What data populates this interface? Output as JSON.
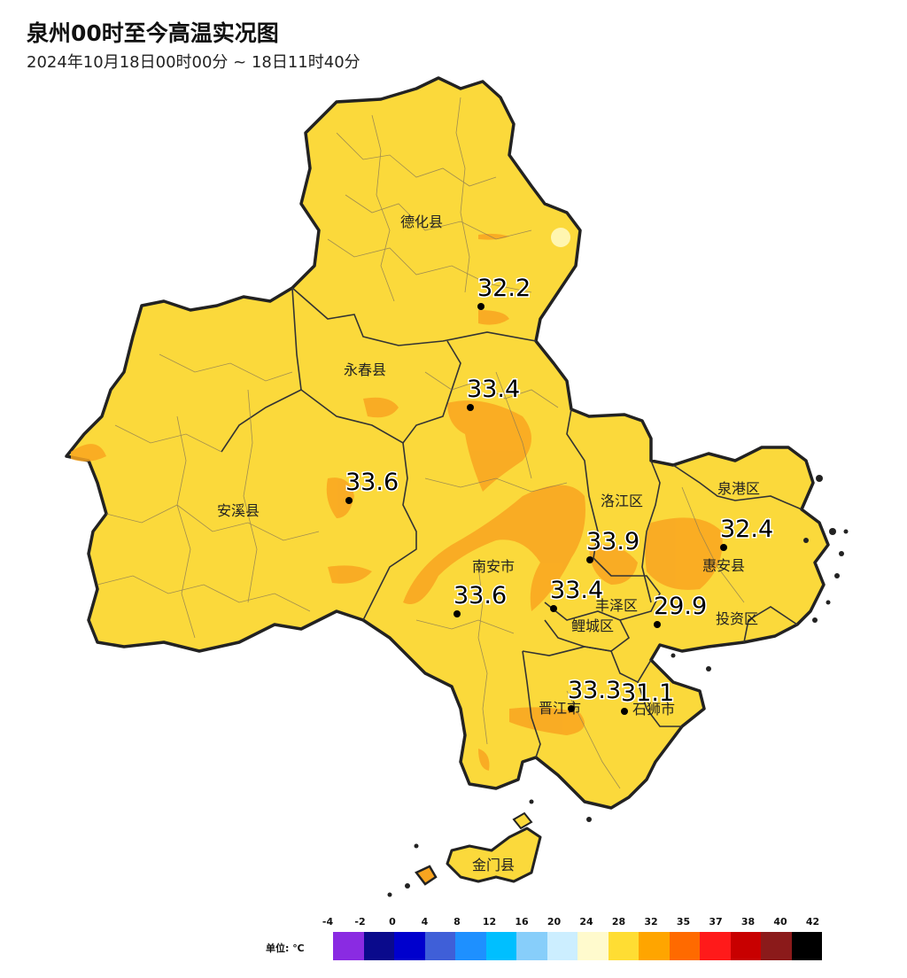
{
  "title": "泉州00时至今高温实况图",
  "subtitle": "2024年10月18日00时00分 ~ 18日11时40分",
  "map_labels": {
    "dehua": "德化县",
    "yongchun": "永春县",
    "anxi": "安溪县",
    "nanan": "南安市",
    "luojiang": "洛江区",
    "quangang": "泉港区",
    "huian": "惠安县",
    "fengze": "丰泽区",
    "licheng": "鲤城区",
    "touziqu": "投资区",
    "jinjiang": "晋江市",
    "shishi": "石狮市",
    "jinmen": "金门县"
  },
  "stations": [
    {
      "id": "dehua",
      "value": "32.2"
    },
    {
      "id": "yongchun",
      "value": "33.4"
    },
    {
      "id": "anxi",
      "value": "33.6"
    },
    {
      "id": "nanan",
      "value": "33.6"
    },
    {
      "id": "luojiang",
      "value": "33.9"
    },
    {
      "id": "licheng",
      "value": "33.4"
    },
    {
      "id": "huian",
      "value": "32.4"
    },
    {
      "id": "touziqu",
      "value": "29.9"
    },
    {
      "id": "jinjiang",
      "value": "33.3"
    },
    {
      "id": "shishi",
      "value": "31.1"
    }
  ],
  "legend": {
    "unit_label": "单位: ℃",
    "ticks": [
      "-4",
      "-2",
      "0",
      "4",
      "8",
      "12",
      "16",
      "20",
      "24",
      "28",
      "32",
      "35",
      "37",
      "38",
      "40",
      "42"
    ],
    "colors": [
      "#8a2be2",
      "#0a0a8c",
      "#0000cd",
      "#3f5fd8",
      "#1e90ff",
      "#00bfff",
      "#87cefa",
      "#cceeff",
      "#fffacd",
      "#ffdd33",
      "#ffa500",
      "#ff6a00",
      "#ff1a1a",
      "#c80000",
      "#8b1a1a",
      "#000000"
    ]
  },
  "colors": {
    "land_main": "#fbd93b",
    "land_warm": "#f9a520",
    "border_dark": "#222222",
    "border_thin": "#8a7a55"
  }
}
